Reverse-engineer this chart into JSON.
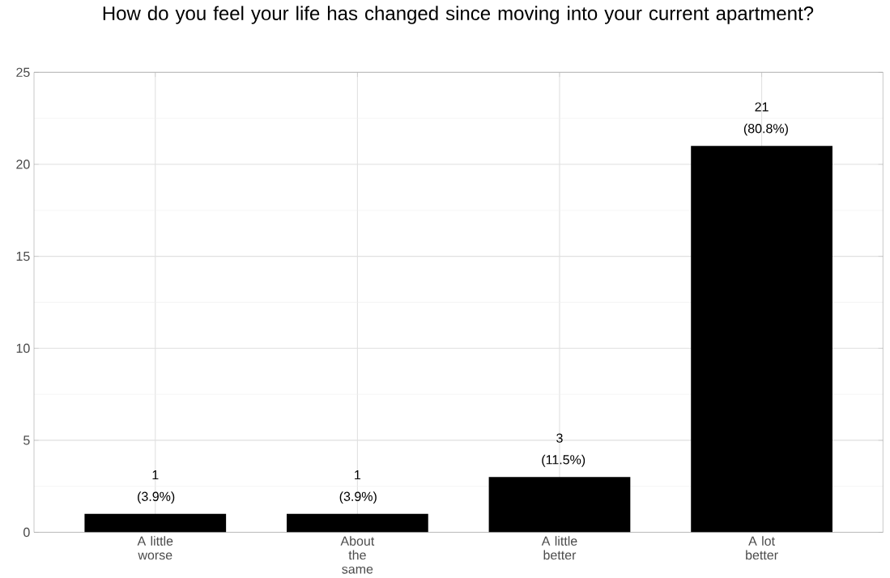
{
  "chart_data": {
    "type": "bar",
    "title": "How do you feel your life has changed since moving into your current apartment?",
    "categories": [
      "A little worse",
      "About the same",
      "A little better",
      "A lot better"
    ],
    "values": [
      1,
      1,
      3,
      21
    ],
    "color": "#000000",
    "value_labels": [
      "1 (3.9%)",
      "1 (3.9%)",
      "3 (11.5%)",
      "21 (80.8%)"
    ],
    "ylim": [
      0,
      25
    ],
    "yticks": [
      0,
      5,
      10,
      15,
      20,
      25
    ],
    "grid": true
  }
}
